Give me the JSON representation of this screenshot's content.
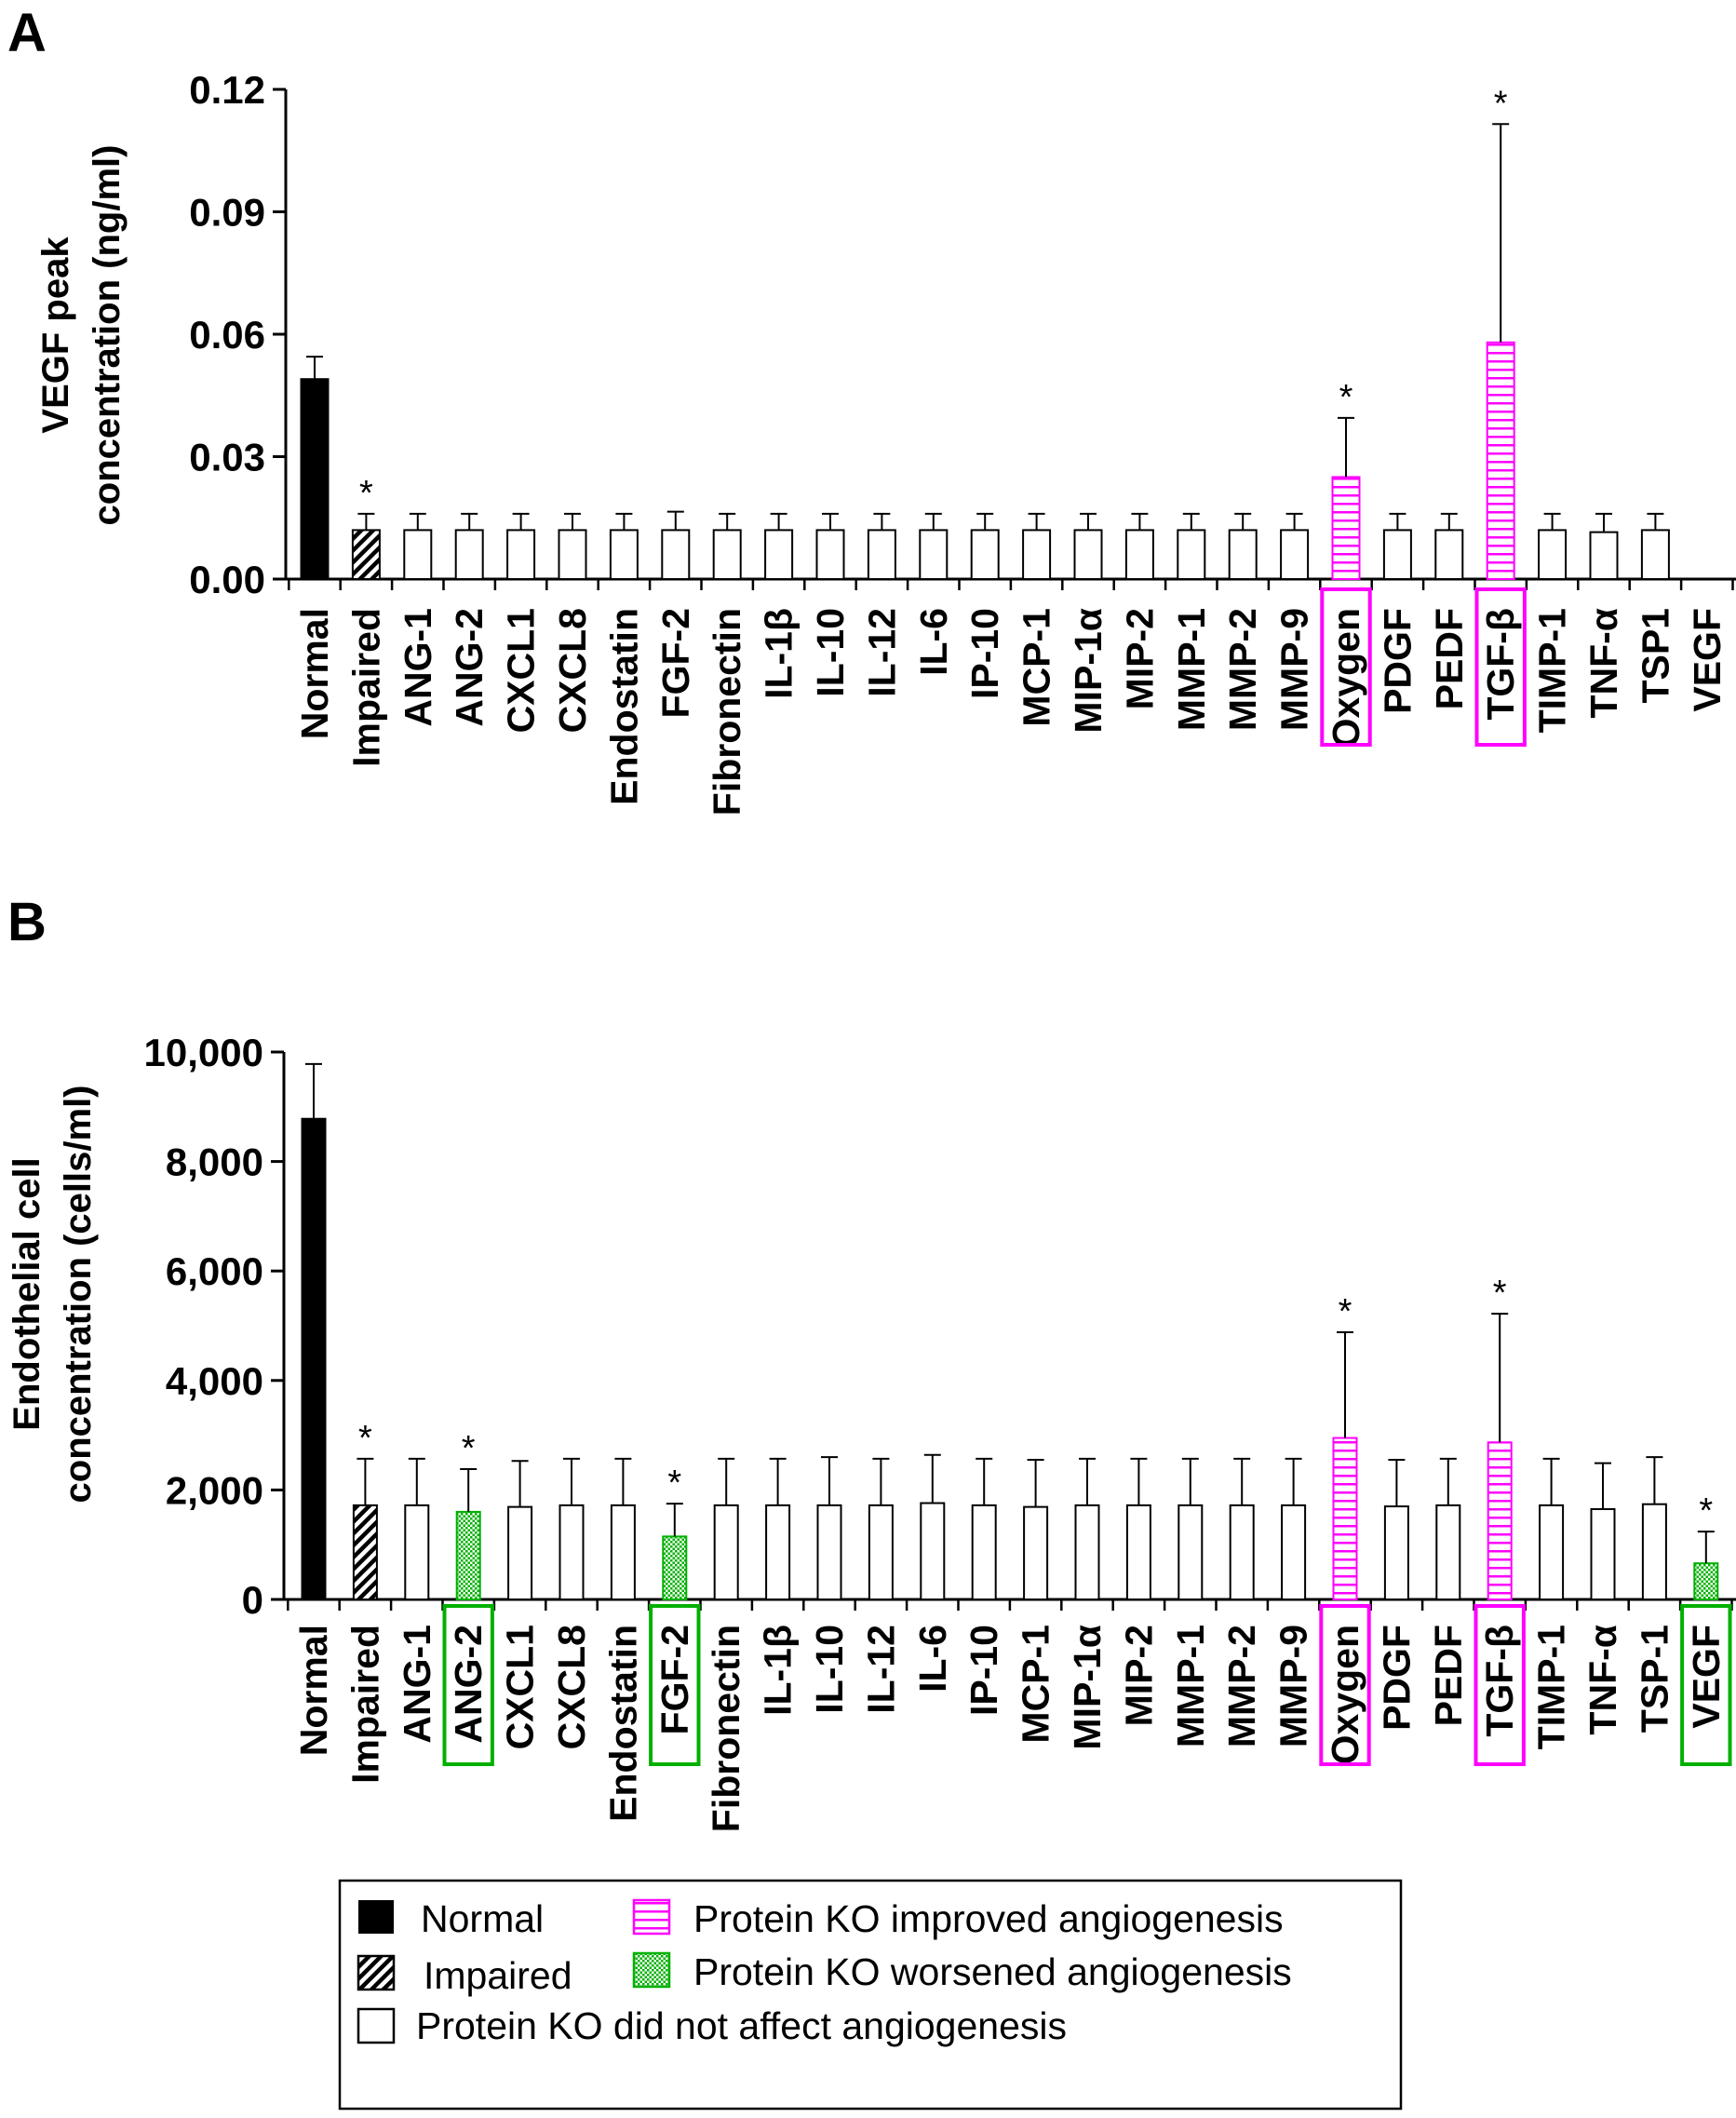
{
  "colors": {
    "normal": "#000000",
    "improved": "#ff00ff",
    "worsened": "#00b000",
    "box_improved": "#ff00ff",
    "box_worsened": "#00b000"
  },
  "chart_data": [
    {
      "panel": "A",
      "type": "bar",
      "ylabel": [
        "VEGF peak",
        "concentration (ng/ml)"
      ],
      "ylim": [
        0,
        0.12
      ],
      "yticks": [
        0,
        0.03,
        0.06,
        0.09,
        0.12
      ],
      "ytick_labels": [
        "0.00",
        "0.03",
        "0.06",
        "0.09",
        "0.12"
      ],
      "categories": [
        "Normal",
        "Impaired",
        "ANG-1",
        "ANG-2",
        "CXCL1",
        "CXCL8",
        "Endostatin",
        "FGF-2",
        "Fibronectin",
        "IL-1β",
        "IL-10",
        "IL-12",
        "IL-6",
        "IP-10",
        "MCP-1",
        "MIP-1α",
        "MIP-2",
        "MMP-1",
        "MMP-2",
        "MMP-9",
        "Oxygen",
        "PDGF",
        "PEDF",
        "TGF-β",
        "TIMP-1",
        "TNF-α",
        "TSP1",
        "VEGF"
      ],
      "values": [
        0.049,
        0.012,
        0.012,
        0.012,
        0.012,
        0.012,
        0.012,
        0.012,
        0.012,
        0.012,
        0.012,
        0.012,
        0.012,
        0.012,
        0.012,
        0.012,
        0.012,
        0.012,
        0.012,
        0.012,
        0.025,
        0.012,
        0.012,
        0.058,
        0.012,
        0.0115,
        0.012,
        0
      ],
      "errors": [
        0.0055,
        0.004,
        0.004,
        0.004,
        0.004,
        0.004,
        0.004,
        0.0045,
        0.004,
        0.004,
        0.004,
        0.004,
        0.004,
        0.004,
        0.004,
        0.004,
        0.004,
        0.004,
        0.004,
        0.004,
        0.0145,
        0.004,
        0.004,
        0.0535,
        0.004,
        0.0045,
        0.004,
        0
      ],
      "groups": [
        "normal",
        "impaired",
        "none",
        "none",
        "none",
        "none",
        "none",
        "none",
        "none",
        "none",
        "none",
        "none",
        "none",
        "none",
        "none",
        "none",
        "none",
        "none",
        "none",
        "none",
        "improved",
        "none",
        "none",
        "improved",
        "none",
        "none",
        "none",
        "none"
      ],
      "significant": [
        false,
        true,
        false,
        false,
        false,
        false,
        false,
        false,
        false,
        false,
        false,
        false,
        false,
        false,
        false,
        false,
        false,
        false,
        false,
        false,
        true,
        false,
        false,
        true,
        false,
        false,
        false,
        false
      ],
      "boxed": {
        "Oxygen": "improved",
        "TGF-β": "improved"
      },
      "significance_marker": "*"
    },
    {
      "panel": "B",
      "type": "bar",
      "ylabel": [
        "Endothelial cell",
        "concentration (cells/ml)"
      ],
      "ylim": [
        0,
        10000
      ],
      "yticks": [
        0,
        2000,
        4000,
        6000,
        8000,
        10000
      ],
      "ytick_labels": [
        "0",
        "2,000",
        "4,000",
        "6,000",
        "8,000",
        "10,000"
      ],
      "categories": [
        "Normal",
        "Impaired",
        "ANG-1",
        "ANG-2",
        "CXCL1",
        "CXCL8",
        "Endostatin",
        "FGF-2",
        "Fibronectin",
        "IL-1β",
        "IL-10",
        "IL-12",
        "IL-6",
        "IP-10",
        "MCP-1",
        "MIP-1α",
        "MIP-2",
        "MMP-1",
        "MMP-2",
        "MMP-9",
        "Oxygen",
        "PDGF",
        "PEDF",
        "TGF-β",
        "TIMP-1",
        "TNF-α",
        "TSP-1",
        "VEGF"
      ],
      "values": [
        8780,
        1720,
        1720,
        1600,
        1690,
        1720,
        1720,
        1150,
        1720,
        1720,
        1720,
        1720,
        1760,
        1720,
        1690,
        1720,
        1720,
        1720,
        1720,
        1720,
        2950,
        1700,
        1720,
        2870,
        1720,
        1650,
        1740,
        660
      ],
      "errors": [
        1000,
        850,
        850,
        780,
        840,
        850,
        850,
        600,
        850,
        850,
        880,
        850,
        880,
        850,
        860,
        850,
        850,
        850,
        850,
        850,
        1930,
        850,
        850,
        2350,
        850,
        840,
        860,
        580
      ],
      "groups": [
        "normal",
        "impaired",
        "none",
        "worsened",
        "none",
        "none",
        "none",
        "worsened",
        "none",
        "none",
        "none",
        "none",
        "none",
        "none",
        "none",
        "none",
        "none",
        "none",
        "none",
        "none",
        "improved",
        "none",
        "none",
        "improved",
        "none",
        "none",
        "none",
        "worsened"
      ],
      "significant": [
        false,
        true,
        false,
        true,
        false,
        false,
        false,
        true,
        false,
        false,
        false,
        false,
        false,
        false,
        false,
        false,
        false,
        false,
        false,
        false,
        true,
        false,
        false,
        true,
        false,
        false,
        false,
        true
      ],
      "boxed": {
        "ANG-2": "worsened",
        "FGF-2": "worsened",
        "Oxygen": "improved",
        "TGF-β": "improved",
        "VEGF": "worsened"
      },
      "significance_marker": "*"
    }
  ],
  "legend": {
    "normal": "Normal",
    "impaired": "Impaired",
    "none": "Protein KO did not affect angiogenesis",
    "improved": "Protein KO improved angiogenesis",
    "worsened": "Protein KO worsened angiogenesis"
  }
}
